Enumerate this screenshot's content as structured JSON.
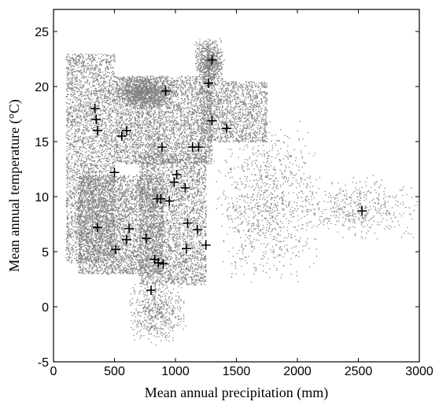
{
  "chart_data": {
    "type": "scatter",
    "title": "",
    "xlabel": "Mean annual precipitation (mm)",
    "ylabel": "Mean annual temperature (°C)",
    "xlim": [
      0,
      3000
    ],
    "ylim": [
      -5,
      27
    ],
    "xticks": [
      0,
      500,
      1000,
      1500,
      2000,
      2500,
      3000
    ],
    "yticks": [
      -5,
      0,
      5,
      10,
      15,
      20,
      25
    ],
    "grid": false,
    "legend": "none",
    "colors": {
      "background_points": "#808080",
      "site_markers": "#000000",
      "axes": "#000000"
    },
    "series": [
      {
        "marker": "dot",
        "description_only_for_density": true,
        "density_regions": [
          {
            "xmin": 100,
            "xmax": 500,
            "ymin": 4,
            "ymax": 23,
            "weight": 9
          },
          {
            "xmin": 200,
            "xmax": 900,
            "ymin": 3,
            "ymax": 12,
            "weight": 10
          },
          {
            "xmin": 500,
            "xmax": 1300,
            "ymin": 13,
            "ymax": 21,
            "weight": 9
          },
          {
            "xmin": 700,
            "xmax": 1250,
            "ymin": 2,
            "ymax": 14,
            "weight": 8
          },
          {
            "xmin": 1200,
            "xmax": 1750,
            "ymin": 15,
            "ymax": 20.5,
            "weight": 4
          },
          {
            "xmin": 1150,
            "xmax": 1400,
            "ymin": 20,
            "ymax": 24.5,
            "weight": 2
          },
          {
            "xmin": 500,
            "xmax": 1000,
            "ymin": 18,
            "ymax": 21,
            "weight": 3
          },
          {
            "xmin": 600,
            "xmax": 1100,
            "ymin": -3.5,
            "ymax": 3,
            "weight": 1.5
          },
          {
            "xmin": 1300,
            "xmax": 2200,
            "ymin": 2,
            "ymax": 17,
            "weight": 2.5
          },
          {
            "xmin": 2000,
            "xmax": 3000,
            "ymin": 6,
            "ymax": 12,
            "weight": 1.2
          }
        ]
      },
      {
        "marker": "+",
        "points": [
          [
            340,
            18.0
          ],
          [
            350,
            17.0
          ],
          [
            360,
            16.0
          ],
          [
            360,
            7.2
          ],
          [
            600,
            16.0
          ],
          [
            560,
            15.5
          ],
          [
            500,
            12.2
          ],
          [
            920,
            19.6
          ],
          [
            890,
            14.5
          ],
          [
            1300,
            22.4
          ],
          [
            1270,
            20.3
          ],
          [
            1300,
            16.9
          ],
          [
            1420,
            16.2
          ],
          [
            1140,
            14.5
          ],
          [
            1190,
            14.5
          ],
          [
            1010,
            12.0
          ],
          [
            990,
            11.3
          ],
          [
            1080,
            10.8
          ],
          [
            850,
            9.8
          ],
          [
            880,
            9.8
          ],
          [
            950,
            9.6
          ],
          [
            1100,
            7.6
          ],
          [
            1180,
            7.0
          ],
          [
            760,
            6.2
          ],
          [
            620,
            7.1
          ],
          [
            600,
            6.1
          ],
          [
            510,
            5.2
          ],
          [
            1090,
            5.3
          ],
          [
            1250,
            5.6
          ],
          [
            830,
            4.3
          ],
          [
            860,
            4.0
          ],
          [
            900,
            3.9
          ],
          [
            800,
            1.5
          ],
          [
            2530,
            8.7
          ]
        ]
      }
    ]
  }
}
